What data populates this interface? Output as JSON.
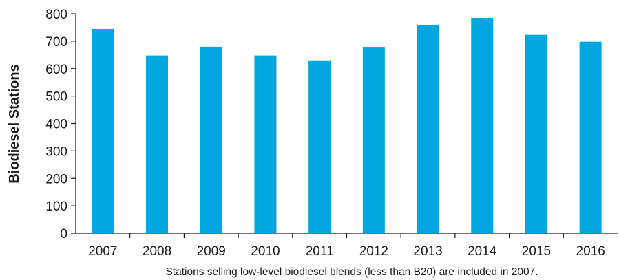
{
  "chart_data": {
    "type": "bar",
    "categories": [
      "2007",
      "2008",
      "2009",
      "2010",
      "2011",
      "2012",
      "2013",
      "2014",
      "2015",
      "2016"
    ],
    "values": [
      745,
      648,
      680,
      648,
      630,
      677,
      760,
      785,
      723,
      698
    ],
    "ylabel": "Biodiesel Stations",
    "xlabel": "",
    "ylim": [
      0,
      800
    ],
    "yticks": [
      "0",
      "100",
      "200",
      "300",
      "400",
      "500",
      "600",
      "700",
      "800"
    ],
    "grid": false,
    "legend": "none",
    "note": "Stations selling low-level biodiesel blends (less than B20) are included in 2007.",
    "colors": {
      "bar": "#00a6e0",
      "axis": "#1a1a1a",
      "text": "#1a1a1a"
    }
  }
}
